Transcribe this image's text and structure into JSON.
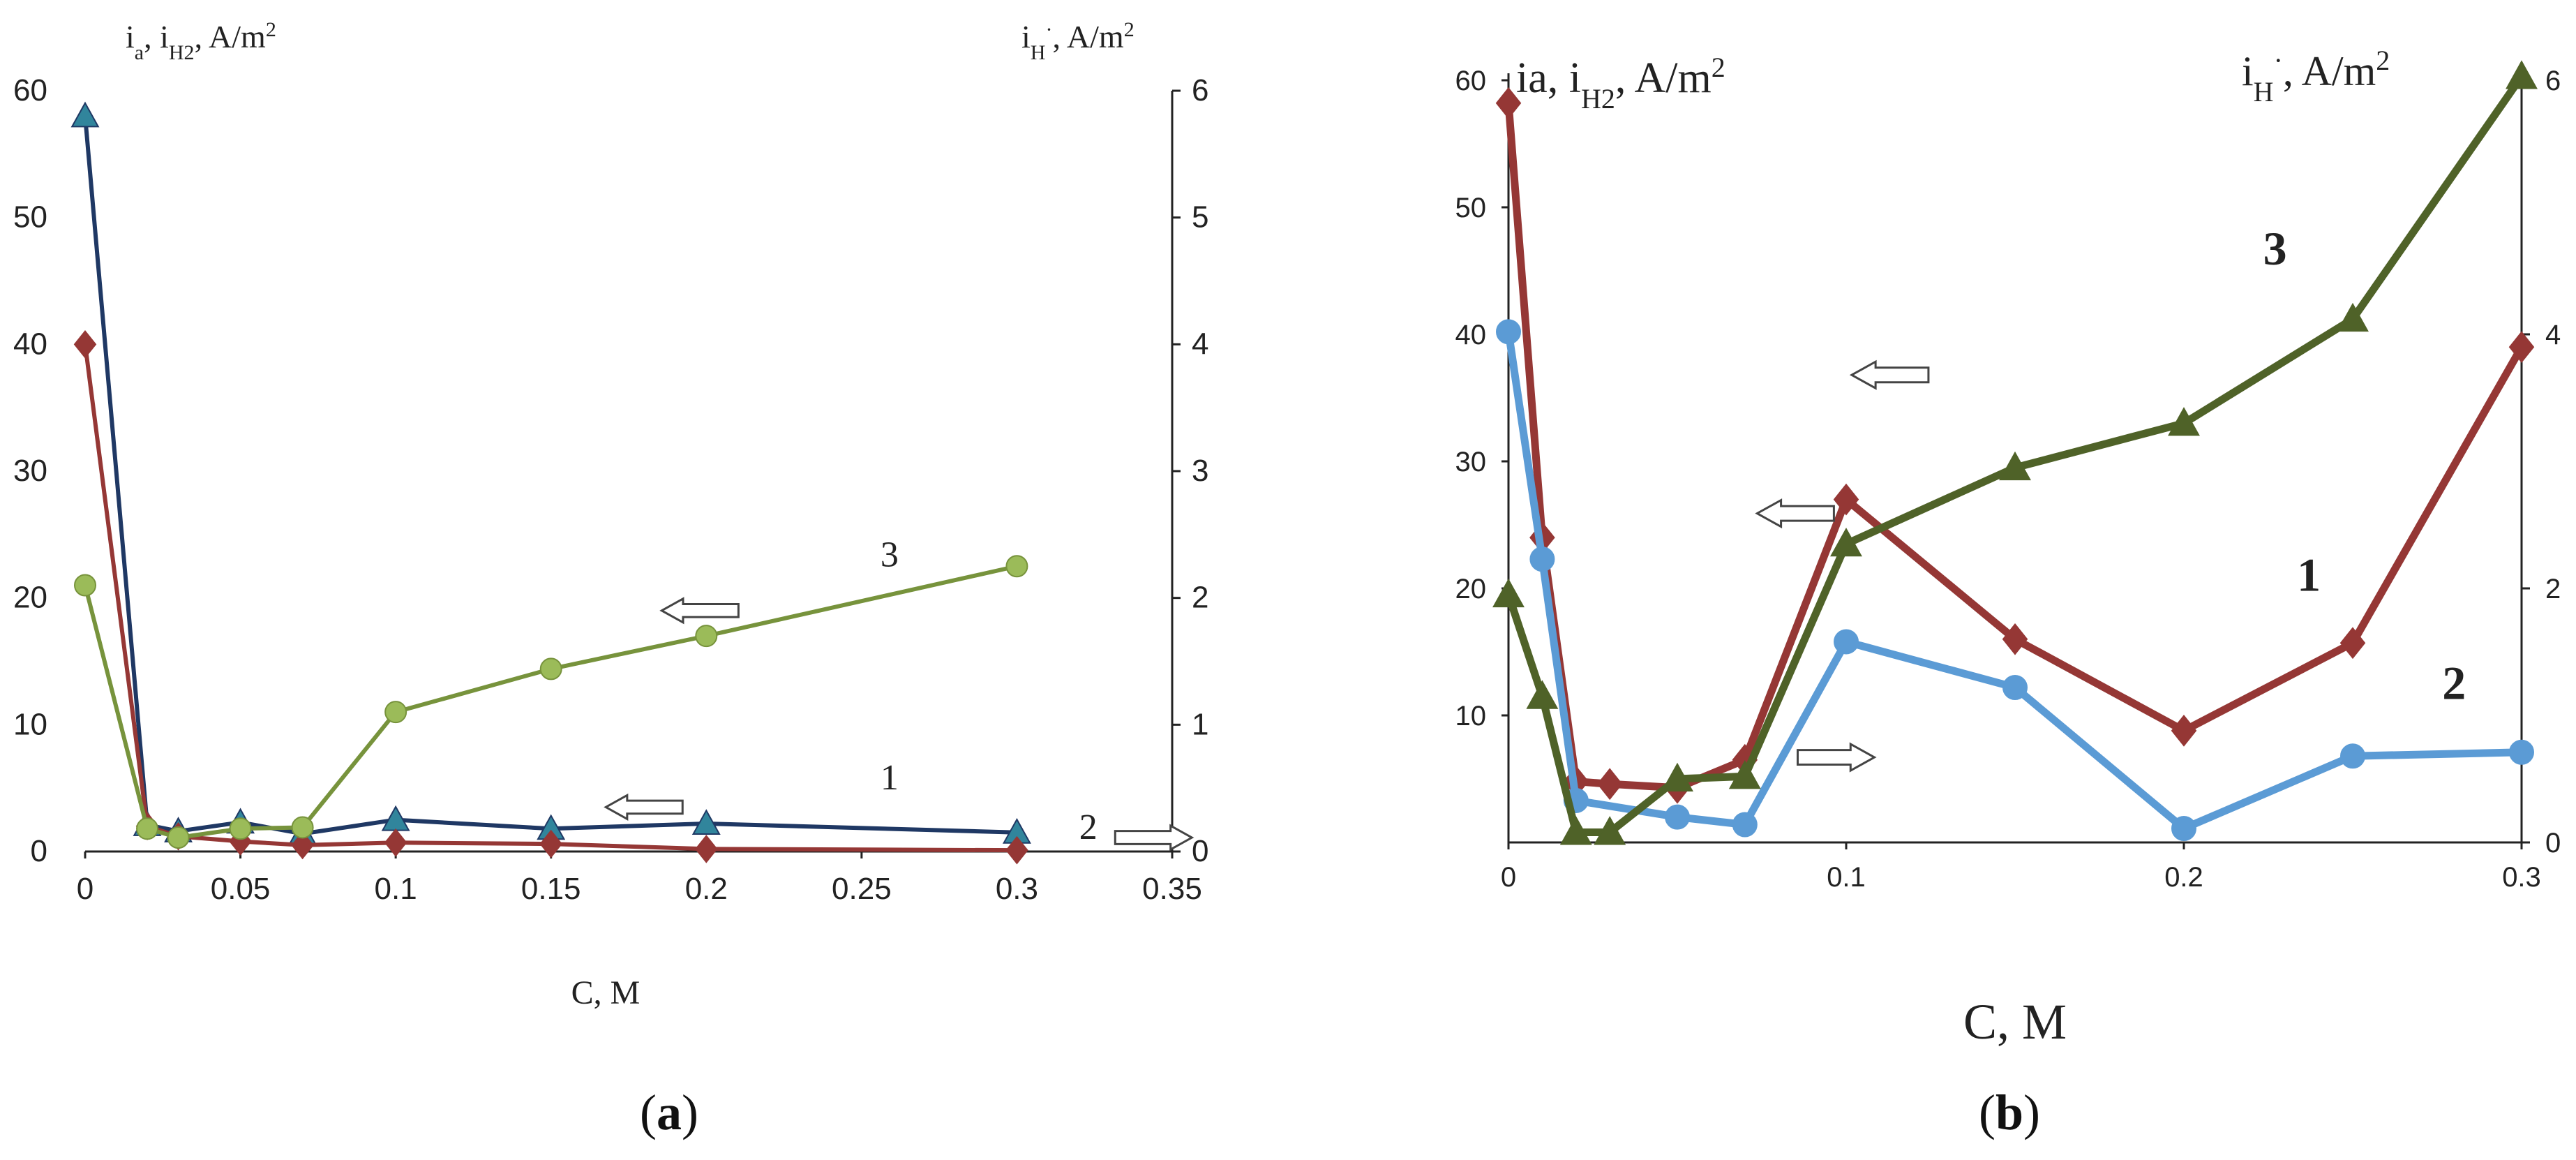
{
  "chart_data": [
    {
      "panel": "a",
      "type": "line",
      "panel_label_text": "(a)",
      "panel_label_letter": "a",
      "xlabel": "C, M",
      "ylabel_left": {
        "main": "i",
        "sub_a": "a",
        "mid": ", i",
        "sub_h2": "H2",
        "tail": ", A/m",
        "sup": "2"
      },
      "ylabel_right": {
        "main": "i",
        "sub": "H",
        "sup_dot": "·",
        "tail": ", A/m",
        "sup": "2"
      },
      "xlim": [
        0,
        0.35
      ],
      "ylim_left": [
        0,
        60
      ],
      "ylim_right": [
        0,
        6
      ],
      "x_ticks": [
        "0",
        "0.05",
        "0.1",
        "0.15",
        "0.2",
        "0.25",
        "0.3",
        "0.35"
      ],
      "x_tick_values": [
        0,
        0.05,
        0.1,
        0.15,
        0.2,
        0.25,
        0.3,
        0.35
      ],
      "y_ticks_left": [
        "0",
        "10",
        "20",
        "30",
        "40",
        "50",
        "60"
      ],
      "y_tick_values_left": [
        0,
        10,
        20,
        30,
        40,
        50,
        60
      ],
      "y_ticks_right": [
        "0",
        "1",
        "2",
        "3",
        "4",
        "5",
        "6"
      ],
      "y_tick_values_right": [
        0,
        1,
        2,
        3,
        4,
        5,
        6
      ],
      "series": [
        {
          "id": "a-series-1-dark-blue",
          "label": "1",
          "axis": "left",
          "color": "#1f3864",
          "marker_color": "#31859c",
          "marker": "triangle",
          "x": [
            0,
            0.02,
            0.03,
            0.05,
            0.07,
            0.1,
            0.15,
            0.2,
            0.3
          ],
          "y": [
            58,
            2.1,
            1.6,
            2.3,
            1.4,
            2.5,
            1.8,
            2.2,
            1.5
          ]
        },
        {
          "id": "a-series-2-red",
          "label": "2",
          "axis": "right",
          "color": "#953735",
          "marker_color": "#953735",
          "marker": "diamond",
          "x": [
            0,
            0.02,
            0.03,
            0.05,
            0.07,
            0.1,
            0.15,
            0.2,
            0.3
          ],
          "y": [
            4.0,
            0.2,
            0.12,
            0.08,
            0.05,
            0.07,
            0.06,
            0.02,
            0.01
          ]
        },
        {
          "id": "a-series-3-green",
          "label": "3",
          "axis": "left",
          "color": "#77933c",
          "marker_color": "#9bbb59",
          "marker": "circle",
          "x": [
            0,
            0.02,
            0.03,
            0.05,
            0.07,
            0.1,
            0.15,
            0.2,
            0.3
          ],
          "y": [
            21,
            1.8,
            1.1,
            1.8,
            1.9,
            11,
            14.4,
            17,
            22.5
          ]
        }
      ],
      "annotations": [
        {
          "text": "3",
          "x": 0.259,
          "y": 22.5
        },
        {
          "text": "1",
          "x": 0.259,
          "y": 4.9
        },
        {
          "text": "2",
          "x": 0.323,
          "y": 1.0
        }
      ],
      "arrows": [
        {
          "direction": "left",
          "x": 0.198,
          "y": 19.0
        },
        {
          "direction": "left",
          "x": 0.18,
          "y": 3.5
        },
        {
          "direction": "right",
          "x": 0.344,
          "y": 1.1
        }
      ]
    },
    {
      "panel": "b",
      "type": "line",
      "panel_label_text": "(b)",
      "panel_label_letter": "b",
      "xlabel": "C, M",
      "ylabel_left": {
        "main": "ia, i",
        "sub_h2": "H2",
        "tail": ", A/m",
        "sup": "2"
      },
      "ylabel_right": {
        "main": "i",
        "sub": "H",
        "sup_dot": "·",
        "tail": ", A/m",
        "sup": "2"
      },
      "xlim": [
        0,
        0.3
      ],
      "ylim_left": [
        0,
        60
      ],
      "ylim_right": [
        0,
        6
      ],
      "x_ticks": [
        "0",
        "0.1",
        "0.2",
        "0.3"
      ],
      "x_tick_values": [
        0,
        0.1,
        0.2,
        0.3
      ],
      "y_ticks_left": [
        "10",
        "20",
        "30",
        "40",
        "50",
        "60"
      ],
      "y_tick_values_left": [
        10,
        20,
        30,
        40,
        50,
        60
      ],
      "y_ticks_right": [
        "0",
        "2",
        "4",
        "6"
      ],
      "y_tick_values_right": [
        0,
        2,
        4,
        6
      ],
      "series": [
        {
          "id": "b-series-1-red",
          "label": "1",
          "axis": "left",
          "color": "#953735",
          "marker_color": "#953735",
          "marker": "diamond",
          "x": [
            0,
            0.01,
            0.02,
            0.03,
            0.05,
            0.07,
            0.1,
            0.15,
            0.2,
            0.25,
            0.3
          ],
          "y": [
            58.2,
            24,
            4.8,
            4.6,
            4.3,
            6.5,
            27,
            16,
            8.8,
            15.7,
            39
          ]
        },
        {
          "id": "b-series-2-blue",
          "label": "2",
          "axis": "right",
          "color": "#5b9bd5",
          "marker_color": "#5b9bd5",
          "marker": "circle",
          "x": [
            0,
            0.01,
            0.02,
            0.05,
            0.07,
            0.1,
            0.15,
            0.2,
            0.25,
            0.3
          ],
          "y": [
            4.02,
            2.23,
            0.33,
            0.2,
            0.14,
            1.58,
            1.22,
            0.11,
            0.68,
            0.71
          ]
        },
        {
          "id": "b-series-3-dark-green",
          "label": "3",
          "axis": "left",
          "color": "#4f6228",
          "marker_color": "#4f6228",
          "marker": "triangle",
          "x": [
            0,
            0.01,
            0.02,
            0.03,
            0.05,
            0.07,
            0.1,
            0.15,
            0.2,
            0.25,
            0.3
          ],
          "y": [
            19.5,
            11.5,
            0.8,
            0.8,
            5.0,
            5.2,
            23.5,
            29.5,
            33,
            41.2,
            60.3
          ]
        }
      ],
      "annotations": [
        {
          "text": "3",
          "x": 0.227,
          "y": 45.5
        },
        {
          "text": "1",
          "x": 0.237,
          "y": 19.8
        },
        {
          "text": "2",
          "x": 0.28,
          "y": 11.3
        }
      ],
      "arrows": [
        {
          "direction": "left",
          "x": 0.113,
          "y": 36.8
        },
        {
          "direction": "left",
          "x": 0.085,
          "y": 25.9
        },
        {
          "direction": "right",
          "x": 0.097,
          "y": 6.7
        }
      ]
    }
  ]
}
